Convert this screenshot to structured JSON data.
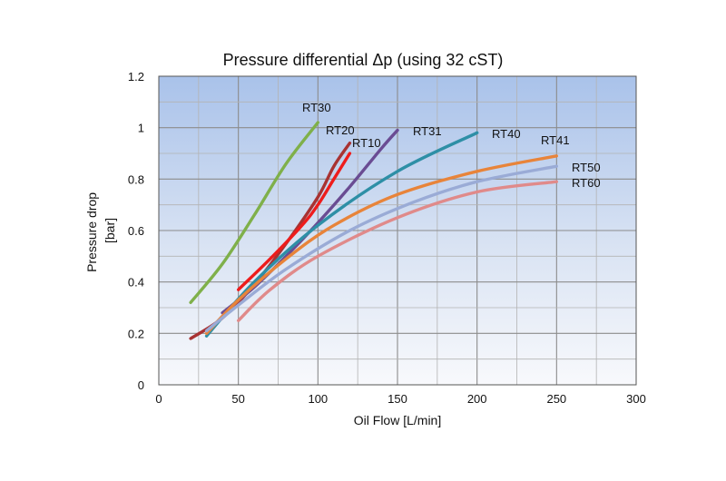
{
  "chart_data": {
    "type": "line",
    "title": "Pressure differential Δp (using 32 cST)",
    "xlabel": "Oil Flow [L/min]",
    "ylabel": [
      "Pressure drop",
      "[bar]"
    ],
    "xlim": [
      0,
      300
    ],
    "ylim": [
      0,
      1.2
    ],
    "xticks": [
      0,
      50,
      100,
      150,
      200,
      250,
      300
    ],
    "yticks": [
      0,
      0.2,
      0.4,
      0.6,
      0.8,
      1,
      1.2
    ],
    "grid": true,
    "series": [
      {
        "name": "RT30",
        "color": "#7fb04a",
        "x": [
          20,
          40,
          60,
          80,
          100
        ],
        "y": [
          0.32,
          0.47,
          0.66,
          0.86,
          1.02
        ]
      },
      {
        "name": "RT20",
        "color": "#a83232",
        "x": [
          20,
          40,
          60,
          80,
          100,
          110,
          120
        ],
        "y": [
          0.18,
          0.26,
          0.39,
          0.55,
          0.73,
          0.85,
          0.94
        ]
      },
      {
        "name": "RT10",
        "color": "#ee1c1c",
        "x": [
          50,
          70,
          90,
          100,
          110,
          120
        ],
        "y": [
          0.37,
          0.49,
          0.62,
          0.7,
          0.8,
          0.9
        ]
      },
      {
        "name": "RT31",
        "color": "#6a4c93",
        "x": [
          40,
          60,
          80,
          100,
          120,
          140,
          150
        ],
        "y": [
          0.28,
          0.38,
          0.5,
          0.63,
          0.77,
          0.92,
          0.99
        ]
      },
      {
        "name": "RT40",
        "color": "#2e8fa6",
        "x": [
          30,
          60,
          100,
          150,
          200
        ],
        "y": [
          0.19,
          0.4,
          0.62,
          0.83,
          0.98
        ]
      },
      {
        "name": "RT41",
        "color": "#e8843a",
        "x": [
          30,
          50,
          80,
          110,
          150,
          200,
          250
        ],
        "y": [
          0.2,
          0.33,
          0.49,
          0.62,
          0.74,
          0.83,
          0.89
        ]
      },
      {
        "name": "RT50",
        "color": "#9aabd6",
        "x": [
          30,
          50,
          80,
          120,
          160,
          200,
          250
        ],
        "y": [
          0.21,
          0.31,
          0.45,
          0.6,
          0.71,
          0.79,
          0.85
        ]
      },
      {
        "name": "RT60",
        "color": "#e08a8a",
        "x": [
          50,
          70,
          100,
          150,
          200,
          250
        ],
        "y": [
          0.25,
          0.37,
          0.5,
          0.65,
          0.75,
          0.79
        ]
      }
    ]
  }
}
